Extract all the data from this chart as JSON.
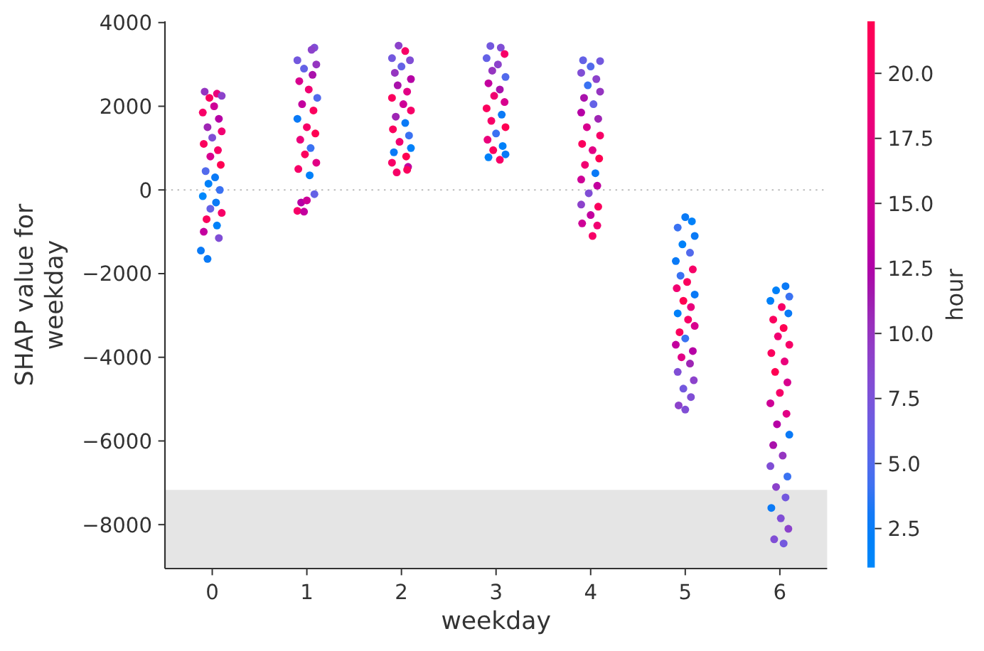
{
  "chart_data": {
    "type": "scatter",
    "xlabel": "weekday",
    "ylabel": "SHAP value for\nweekday",
    "clabel": "hour",
    "marker": "circle",
    "xlim": [
      -0.5,
      6.5
    ],
    "xticks": [
      0,
      1,
      2,
      3,
      4,
      5,
      6
    ],
    "ylim": [
      -9050,
      4030
    ],
    "yticks": [
      {
        "value": -8000,
        "label": "−8000"
      },
      {
        "value": -6000,
        "label": "−6000"
      },
      {
        "value": -4000,
        "label": "−4000"
      },
      {
        "value": -2000,
        "label": "−2000"
      },
      0,
      2000,
      4000
    ],
    "clim": [
      1,
      22
    ],
    "cticks": [
      2.5,
      {
        "value": 5,
        "label": "5.0"
      },
      7.5,
      {
        "value": 10,
        "label": "10.0"
      },
      12.5,
      {
        "value": 15,
        "label": "15.0"
      },
      17.5,
      {
        "value": 20,
        "label": "20.0"
      }
    ],
    "ref_lines": [
      {
        "axis": "y",
        "value": 0,
        "color": "#bbbbbb",
        "line_style": "dotted"
      }
    ],
    "bands": [
      {
        "axis": "y",
        "from": -9050,
        "to": -7170,
        "color": "#e5e5e5"
      }
    ],
    "x": [
      -0.08,
      0.05,
      -0.03,
      0.1,
      0.02,
      -0.1,
      0.07,
      -0.05,
      0.1,
      0,
      -0.09,
      0.06,
      -0.02,
      0.09,
      -0.07,
      0.03,
      -0.04,
      0.08,
      -0.1,
      0.04,
      -0.02,
      0.1,
      -0.06,
      0.05,
      -0.09,
      0.07,
      -0.12,
      -0.05,
      1.08,
      1.05,
      0.9,
      1.1,
      0.97,
      1.06,
      0.92,
      1.02,
      1.11,
      0.95,
      1.07,
      0.9,
      1,
      1.09,
      0.93,
      1.04,
      0.98,
      1.1,
      0.91,
      1.03,
      1.08,
      0.94,
      1,
      0.9,
      0.97,
      1.97,
      2.04,
      1.9,
      2.09,
      2,
      1.93,
      2.1,
      1.96,
      2.06,
      1.9,
      2.02,
      2.1,
      1.94,
      2.04,
      1.91,
      2.08,
      1.98,
      2.1,
      1.92,
      2.05,
      1.9,
      2.07,
      1.95,
      2.06,
      2.94,
      3.05,
      3.09,
      2.9,
      3.02,
      2.96,
      3.1,
      2.92,
      3.04,
      2.98,
      3.09,
      2.9,
      3.06,
      2.95,
      3.1,
      3,
      2.91,
      3.07,
      2.97,
      3.1,
      2.92,
      3.04,
      3.92,
      4.1,
      4,
      3.9,
      4.06,
      3.97,
      4.1,
      3.93,
      4.03,
      3.9,
      4.08,
      3.96,
      4.1,
      3.91,
      4.02,
      4.09,
      3.94,
      4.05,
      3.9,
      4.07,
      3.98,
      3.9,
      4.08,
      4,
      3.91,
      4.07,
      4.02,
      5,
      5.07,
      4.92,
      5.1,
      4.97,
      5.05,
      4.9,
      5.08,
      4.95,
      5.02,
      4.91,
      5.1,
      4.98,
      5.06,
      4.92,
      5.03,
      5.1,
      4.94,
      5,
      4.9,
      5.08,
      4.96,
      5.05,
      4.92,
      5.09,
      4.98,
      5.06,
      4.93,
      5,
      6.06,
      5.96,
      6.1,
      5.9,
      6.02,
      6.09,
      5.93,
      6.04,
      5.98,
      6.1,
      5.91,
      6.05,
      5.95,
      6.08,
      6,
      5.9,
      6.07,
      5.97,
      6.1,
      5.93,
      6.03,
      5.9,
      6.08,
      5.96,
      6.06,
      5.91,
      6.01,
      6.09,
      5.94,
      6.04
    ],
    "values": [
      2350,
      2300,
      2200,
      2250,
      2000,
      1850,
      1700,
      1500,
      1400,
      1250,
      1100,
      950,
      800,
      600,
      450,
      300,
      150,
      0,
      -150,
      -300,
      -450,
      -550,
      -700,
      -850,
      -1000,
      -1150,
      -1450,
      -1650,
      3400,
      3350,
      3100,
      3000,
      2900,
      2750,
      2600,
      2400,
      2200,
      2050,
      1900,
      1700,
      1500,
      1350,
      1200,
      1000,
      850,
      650,
      500,
      350,
      -100,
      -300,
      -250,
      -500,
      -520,
      3450,
      3320,
      3150,
      3100,
      2950,
      2800,
      2650,
      2500,
      2350,
      2200,
      2050,
      1900,
      1750,
      1600,
      1450,
      1300,
      1150,
      1000,
      900,
      800,
      650,
      550,
      420,
      480,
      3440,
      3400,
      3250,
      3150,
      3000,
      2850,
      2700,
      2550,
      2400,
      2250,
      2100,
      1950,
      1800,
      1650,
      1500,
      1350,
      1200,
      1050,
      950,
      850,
      780,
      720,
      3100,
      3080,
      2950,
      2800,
      2650,
      2500,
      2350,
      2200,
      2050,
      1850,
      1700,
      1500,
      1300,
      1100,
      950,
      750,
      600,
      400,
      250,
      100,
      -80,
      -350,
      -400,
      -600,
      -800,
      -850,
      -1100,
      -650,
      -750,
      -900,
      -1100,
      -1300,
      -1500,
      -1700,
      -1900,
      -2050,
      -2200,
      -2350,
      -2500,
      -2650,
      -2800,
      -2950,
      -3100,
      -3250,
      -3400,
      -3550,
      -3700,
      -3850,
      -4000,
      -4150,
      -4350,
      -4550,
      -4750,
      -4950,
      -5150,
      -5250,
      -2300,
      -2400,
      -2550,
      -2650,
      -2800,
      -2950,
      -3100,
      -3300,
      -3500,
      -3700,
      -3900,
      -4100,
      -4350,
      -4600,
      -4850,
      -5100,
      -5350,
      -5600,
      -5850,
      -6100,
      -6350,
      -6600,
      -6850,
      -7100,
      -7350,
      -7600,
      -7850,
      -8100,
      -8350,
      -8450
    ],
    "cvalues": [
      10,
      18,
      21,
      9,
      15,
      20,
      13,
      11,
      19,
      8,
      21,
      20,
      16,
      22,
      5,
      3,
      2,
      4,
      1,
      3,
      6,
      20,
      21,
      2,
      14,
      8,
      3,
      3,
      8,
      9,
      7,
      10,
      6,
      12,
      16,
      19,
      5,
      14,
      21,
      3,
      20,
      22,
      18,
      4,
      21,
      17,
      20,
      2,
      6,
      13,
      15,
      20,
      14,
      9,
      20,
      7,
      8,
      6,
      10,
      13,
      12,
      17,
      21,
      15,
      20,
      11,
      3,
      21,
      4,
      19,
      2,
      3,
      22,
      20,
      14,
      20,
      21,
      7,
      8,
      20,
      6,
      9,
      10,
      5,
      14,
      12,
      19,
      16,
      21,
      3,
      20,
      22,
      4,
      18,
      2,
      21,
      3,
      2,
      20,
      6,
      7,
      5,
      8,
      9,
      4,
      10,
      12,
      6,
      13,
      11,
      16,
      20,
      21,
      17,
      22,
      19,
      3,
      15,
      14,
      8,
      9,
      21,
      14,
      15,
      19,
      20,
      3,
      2,
      4,
      3,
      2,
      5,
      3,
      20,
      4,
      21,
      19,
      3,
      22,
      18,
      2,
      20,
      16,
      21,
      4,
      14,
      13,
      17,
      11,
      8,
      9,
      7,
      8,
      9,
      8,
      3,
      2,
      4,
      2,
      20,
      3,
      21,
      22,
      19,
      20,
      21,
      18,
      22,
      16,
      20,
      15,
      17,
      13,
      3,
      12,
      10,
      8,
      4,
      9,
      7,
      3,
      8,
      9,
      8,
      7
    ]
  }
}
